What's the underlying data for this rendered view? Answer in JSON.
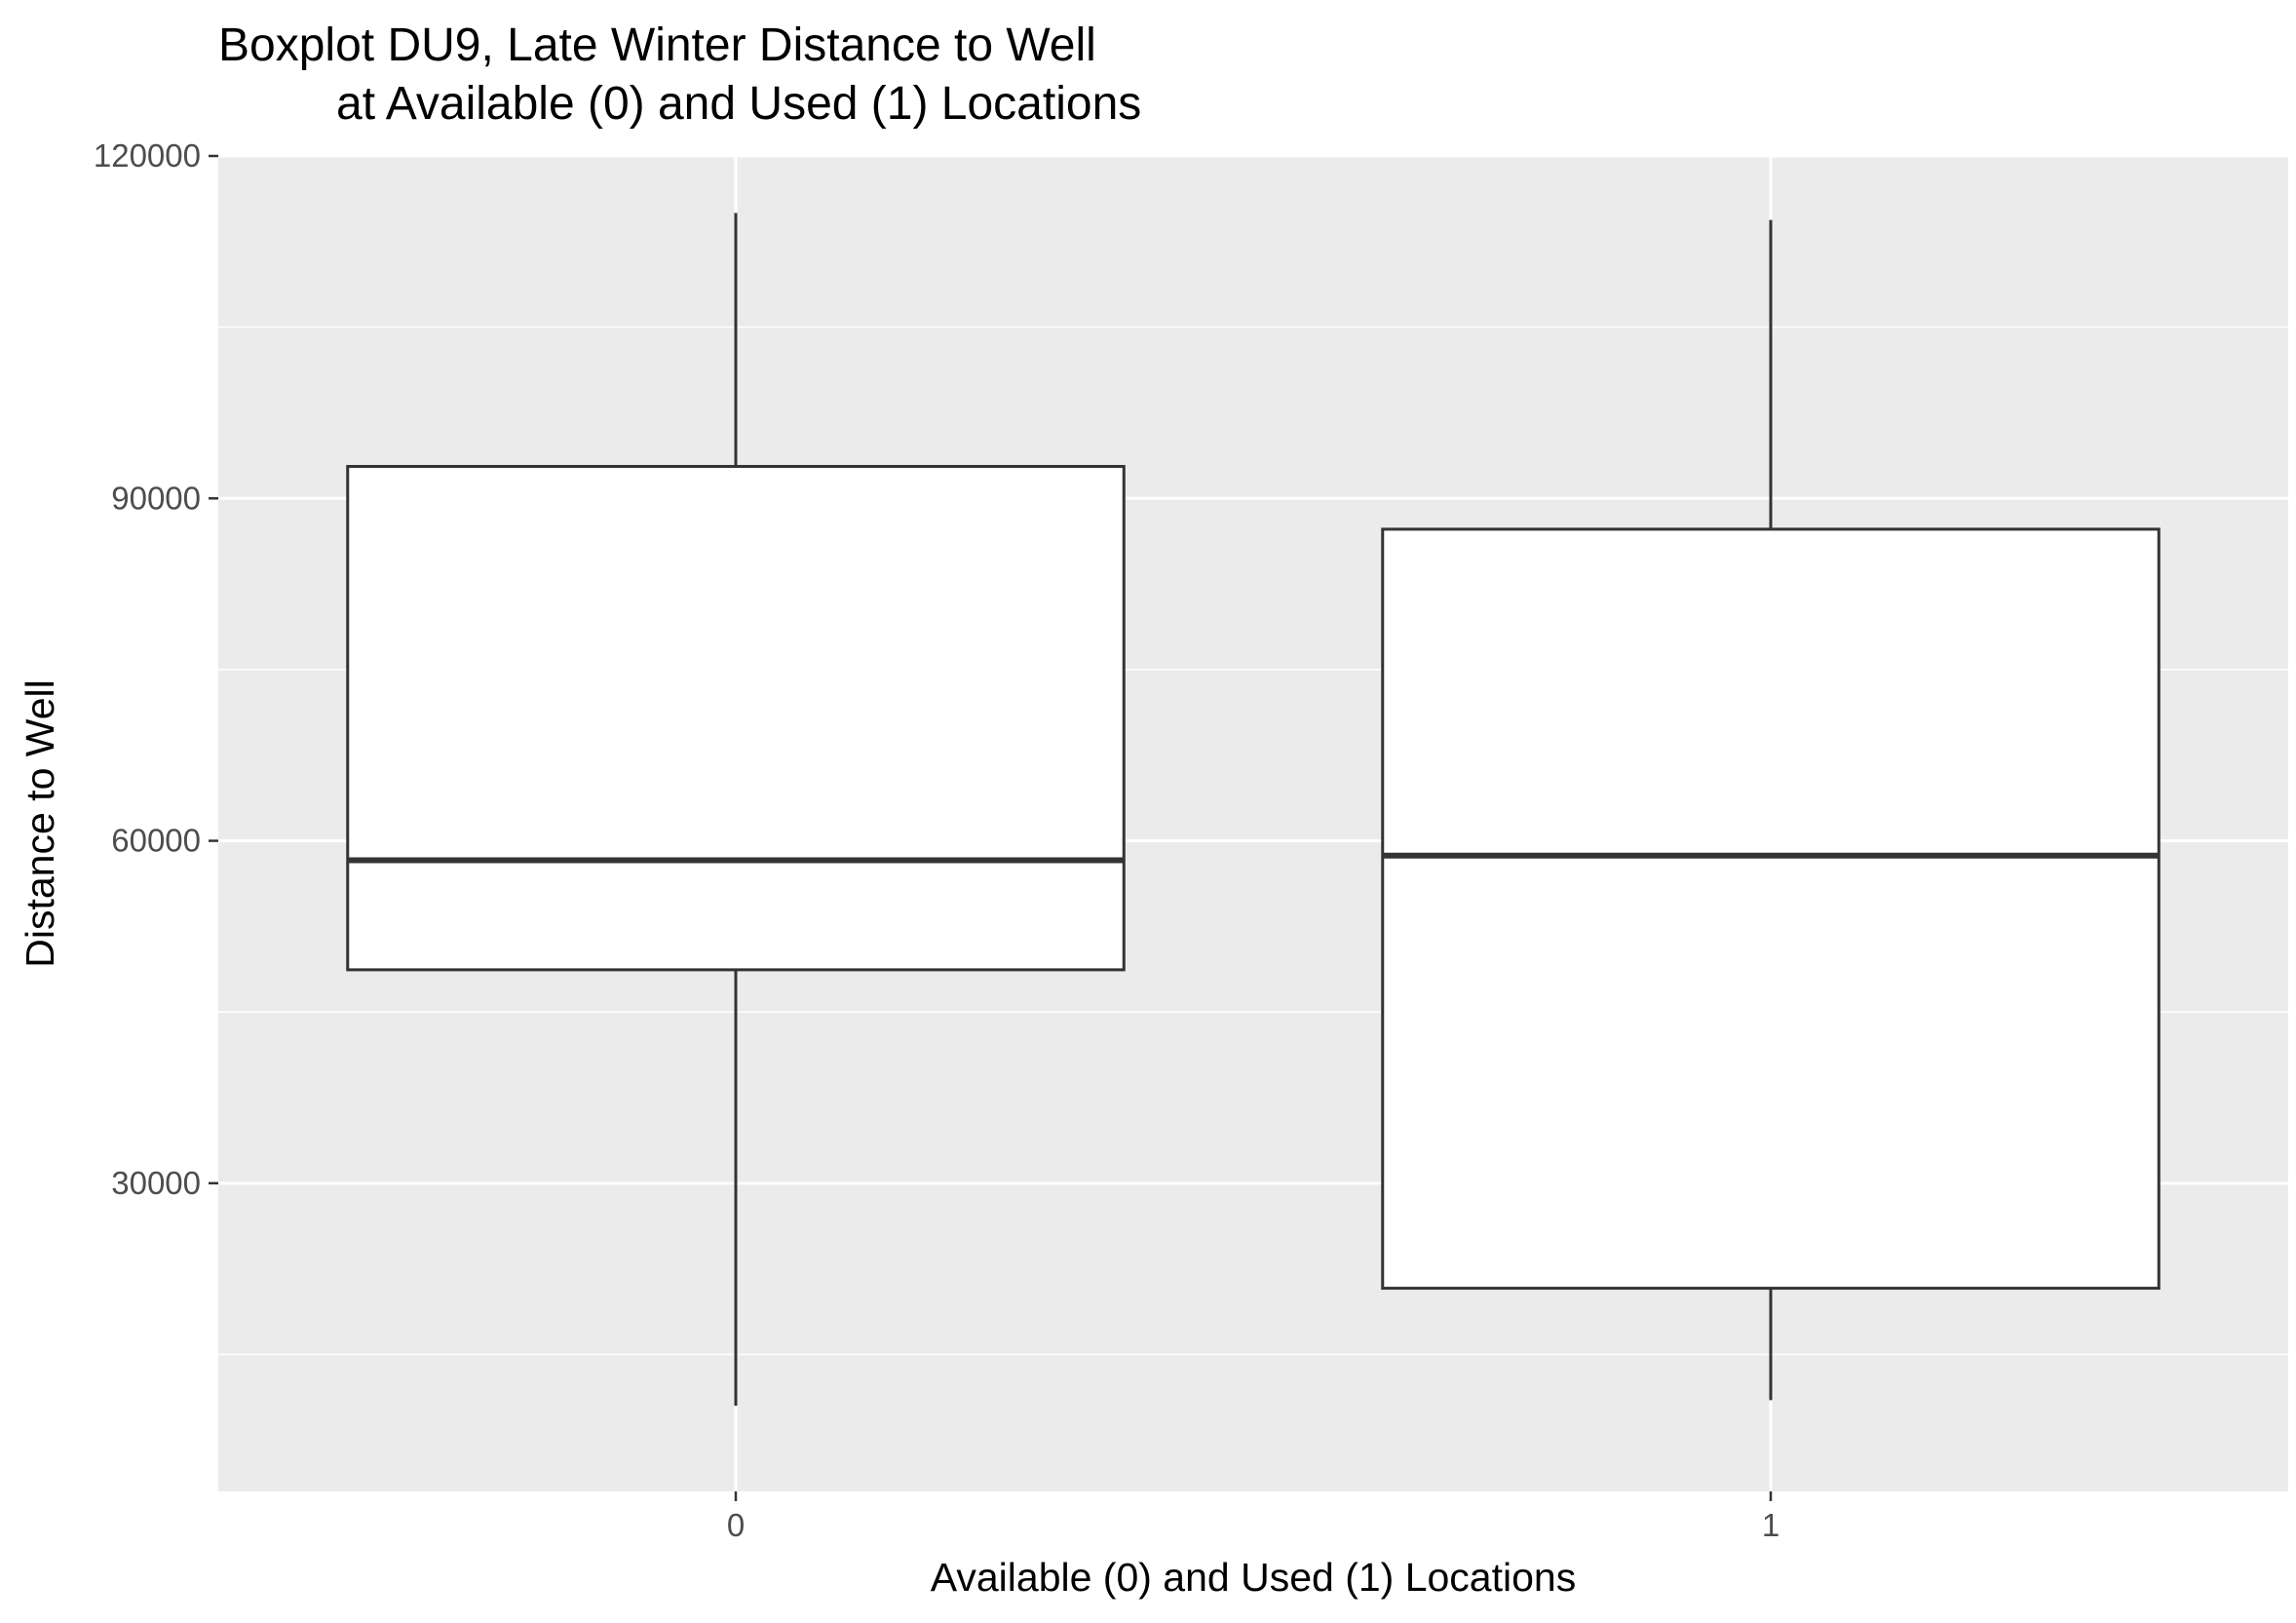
{
  "chart_data": {
    "type": "boxplot",
    "title_line1": "Boxplot DU9, Late Winter Distance to Well",
    "title_line2": "at Available (0) and Used (1) Locations",
    "xlabel": "Available (0) and Used (1) Locations",
    "ylabel": "Distance to Well",
    "categories": [
      "0",
      "1"
    ],
    "ylim": [
      3000,
      120000
    ],
    "yticks": [
      30000,
      60000,
      90000,
      120000
    ],
    "yticks_labels": [
      "30000",
      "60000",
      "90000",
      "120000"
    ],
    "grid": true,
    "boxes": [
      {
        "category": "0",
        "whisker_low": 10500,
        "q1": 48700,
        "median": 58300,
        "q3": 92800,
        "whisker_high": 115000
      },
      {
        "category": "1",
        "whisker_low": 11000,
        "q1": 20800,
        "median": 58700,
        "q3": 87300,
        "whisker_high": 114400
      }
    ],
    "colors": {
      "panel": "#ebebeb",
      "grid": "#ffffff",
      "box_fill": "#ffffff",
      "box_stroke": "#333333",
      "tick": "#333333"
    }
  }
}
